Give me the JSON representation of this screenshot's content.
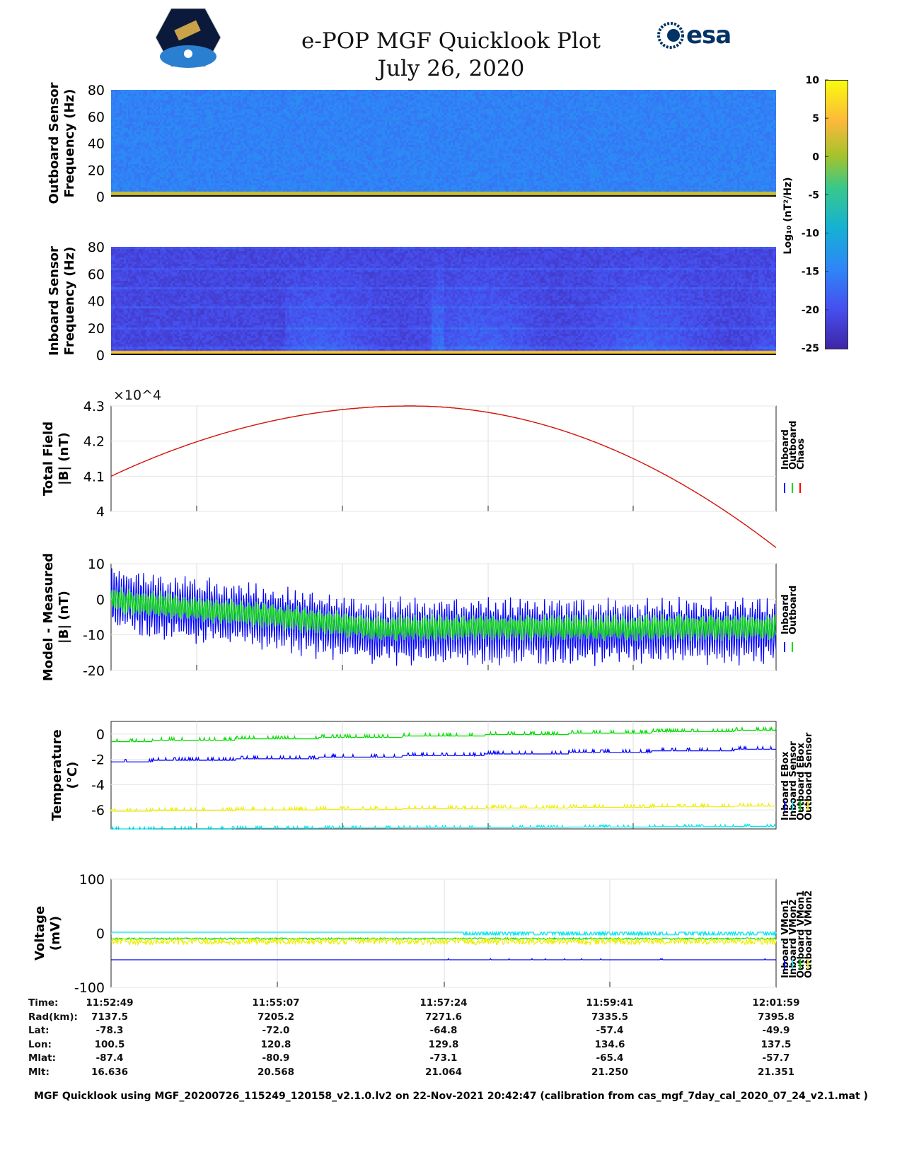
{
  "header": {
    "title": "e-POP MGF Quicklook Plot",
    "date": "July 26, 2020",
    "logo_left": "CASSIOPE",
    "logo_right": "esa"
  },
  "colorbar": {
    "label": "Log10 (nT^2/Hz)",
    "ticks": [
      10,
      5,
      0,
      -5,
      -10,
      -15,
      -20,
      -25
    ],
    "range": [
      -25,
      10
    ]
  },
  "chart_data": [
    {
      "type": "heatmap",
      "name": "outboard-spectrogram",
      "ylabel": [
        "Outboard Sensor",
        "Frequency (Hz)"
      ],
      "yticks": [
        0,
        20,
        40,
        60,
        80
      ],
      "ylim": [
        0,
        80
      ],
      "typical_level": -15,
      "low_freq_level": 2
    },
    {
      "type": "heatmap",
      "name": "inboard-spectrogram",
      "ylabel": [
        "Inboard Sensor",
        "Frequency (Hz)"
      ],
      "yticks": [
        0,
        20,
        40,
        60,
        80
      ],
      "ylim": [
        0,
        80
      ],
      "typical_level": -21,
      "low_freq_level": 5
    },
    {
      "type": "line",
      "name": "total-field",
      "ylabel": [
        "Total Field",
        "|B| (nT)"
      ],
      "exponent": "×10^4",
      "yticks": [
        "4.3",
        "4.2",
        "4.1",
        "4"
      ],
      "ylim": [
        40000,
        43000
      ],
      "legend": [
        "Inboard",
        "Outboard",
        "Chaos"
      ],
      "colors": [
        "#0000ff",
        "#00dd00",
        "#ff0000"
      ],
      "x": [
        "11:52:49",
        "11:55:07",
        "11:57:24",
        "11:59:41",
        "12:01:59"
      ],
      "values": [
        41000,
        42300,
        42950,
        42500,
        40300
      ]
    },
    {
      "type": "line",
      "name": "model-minus-measured",
      "ylabel": [
        "Model - Measured",
        "|B| (nT)"
      ],
      "yticks": [
        "10",
        "0",
        "-10",
        "-20"
      ],
      "ylim": [
        -20,
        10
      ],
      "legend": [
        "Inboard",
        "Outboard"
      ],
      "colors": [
        "#0000ff",
        "#00dd00"
      ],
      "series": [
        {
          "name": "Inboard",
          "mean_start": 0,
          "mean_end": -9,
          "amplitude": 10
        },
        {
          "name": "Outboard",
          "mean_start": 0,
          "mean_end": -8,
          "amplitude": 4
        }
      ]
    },
    {
      "type": "line",
      "name": "temperature",
      "ylabel": [
        "Temperature",
        "(°C)"
      ],
      "yticks": [
        "0",
        "-2",
        "-4",
        "-6"
      ],
      "ylim": [
        -7.5,
        1
      ],
      "legend": [
        "Inboard EBox",
        "Inboard Sensor",
        "Outboard EBox",
        "Outboard Sensor"
      ],
      "colors": [
        "#0000ff",
        "#00e5ee",
        "#00dd00",
        "#eeee00"
      ],
      "series": [
        {
          "name": "Inboard EBox",
          "start": -2.2,
          "end": -1.2
        },
        {
          "name": "Inboard Sensor",
          "start": -7.5,
          "end": -7.3
        },
        {
          "name": "Outboard EBox",
          "start": -0.6,
          "end": 0.3
        },
        {
          "name": "Outboard Sensor",
          "start": -6.1,
          "end": -5.7
        }
      ]
    },
    {
      "type": "line",
      "name": "voltage",
      "ylabel": [
        "Voltage",
        "(mV)"
      ],
      "yticks": [
        "100",
        "0",
        "-100"
      ],
      "ylim": [
        -100,
        100
      ],
      "legend": [
        "Inboard VMon1",
        "Inboard VMon2",
        "Outboard VMon1",
        "Outboard VMon2"
      ],
      "colors": [
        "#0000ff",
        "#00e5ee",
        "#00dd00",
        "#eeee00"
      ],
      "series": [
        {
          "name": "Inboard VMon1",
          "level": -49
        },
        {
          "name": "Inboard VMon2",
          "level": 2
        },
        {
          "name": "Outboard VMon1",
          "level": -10
        },
        {
          "name": "Outboard VMon2",
          "level": -15
        }
      ]
    }
  ],
  "table": {
    "labels": [
      "Time:",
      "Rad(km):",
      "Lat:",
      "Lon:",
      "Mlat:",
      "Mlt:"
    ],
    "columns": [
      [
        "11:52:49",
        "7137.5",
        "-78.3",
        "100.5",
        "-87.4",
        "16.636"
      ],
      [
        "11:55:07",
        "7205.2",
        "-72.0",
        "120.8",
        "-80.9",
        "20.568"
      ],
      [
        "11:57:24",
        "7271.6",
        "-64.8",
        "129.8",
        "-73.1",
        "21.064"
      ],
      [
        "11:59:41",
        "7335.5",
        "-57.4",
        "134.6",
        "-65.4",
        "21.250"
      ],
      [
        "12:01:59",
        "7395.8",
        "-49.9",
        "137.5",
        "-57.7",
        "21.351"
      ]
    ]
  },
  "footer": "MGF Quicklook using MGF_20200726_115249_120158_v2.1.0.lv2 on 22-Nov-2021 20:42:47 (calibration from cas_mgf_7day_cal_2020_07_24_v2.1.mat )"
}
